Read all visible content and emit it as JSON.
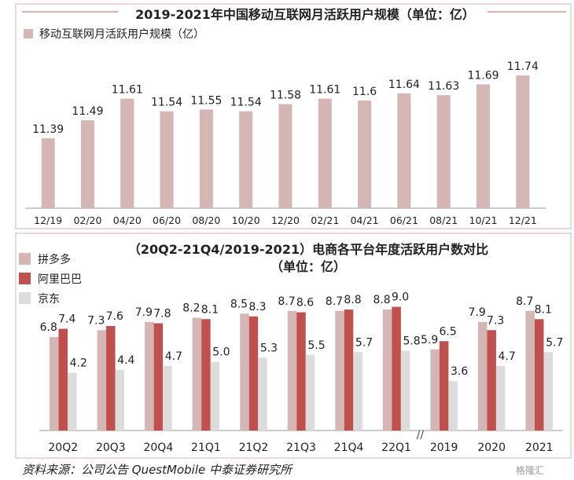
{
  "colors": {
    "panel_border": "#d7b4b4",
    "top_bar": "#d7b4b4",
    "pdd": "#d4b7b5",
    "ali": "#c0504d",
    "jd": "#dcdcdc",
    "axis": "#999999",
    "text": "#222222"
  },
  "chart_data": [
    {
      "type": "bar",
      "title": "2019-2021年中国移动互联网月活跃用户规模（单位：亿）",
      "categories": [
        "12/19",
        "02/20",
        "04/20",
        "06/20",
        "08/20",
        "10/20",
        "12/20",
        "02/21",
        "04/21",
        "06/21",
        "08/21",
        "10/21",
        "12/21"
      ],
      "series": [
        {
          "name": "移动互联网月活跃用户规模（亿）",
          "values": [
            11.39,
            11.49,
            11.61,
            11.54,
            11.55,
            11.54,
            11.58,
            11.61,
            11.6,
            11.64,
            11.63,
            11.69,
            11.74
          ]
        }
      ],
      "value_labels": [
        "11.39",
        "11.49",
        "11.61",
        "11.54",
        "11.55",
        "11.54",
        "11.58",
        "11.61",
        "11.6",
        "11.64",
        "11.63",
        "11.69",
        "11.74"
      ],
      "legend_position": "top-left",
      "grid": false
    },
    {
      "type": "bar",
      "title": "（20Q2-21Q4/2019-2021）电商各平台年度活跃用户数对比",
      "subtitle": "（单位：亿）",
      "categories": [
        "20Q2",
        "20Q3",
        "20Q4",
        "21Q1",
        "21Q2",
        "21Q3",
        "21Q4",
        "22Q1",
        "2019",
        "2020",
        "2021"
      ],
      "axis_break_after": "22Q1",
      "axis_break_label": "//",
      "series": [
        {
          "name": "拼多多",
          "values": [
            6.8,
            7.3,
            7.9,
            8.2,
            8.5,
            8.7,
            8.7,
            8.8,
            5.9,
            7.9,
            8.7
          ]
        },
        {
          "name": "阿里巴巴",
          "values": [
            7.4,
            7.6,
            7.8,
            8.1,
            8.3,
            8.6,
            8.8,
            9.0,
            6.5,
            7.3,
            8.1
          ]
        },
        {
          "name": "京东",
          "values": [
            4.2,
            4.4,
            4.7,
            5.0,
            5.3,
            5.5,
            5.7,
            5.8,
            3.6,
            4.7,
            5.7
          ]
        }
      ],
      "value_labels": [
        [
          "6.8",
          "7.3",
          "7.9",
          "8.2",
          "8.5",
          "8.7",
          "8.7",
          "8.8",
          "5.9",
          "7.9",
          "8.7"
        ],
        [
          "7.4",
          "7.6",
          "7.8",
          "8.1",
          "8.3",
          "8.6",
          "8.8",
          "9.0",
          "6.5",
          "7.3",
          "8.1"
        ],
        [
          "4.2",
          "4.4",
          "4.7",
          "5.0",
          "5.3",
          "5.5",
          "5.7",
          "5.8",
          "3.6",
          "4.7",
          "5.7"
        ]
      ],
      "legend_position": "top-left",
      "grid": false
    }
  ],
  "source": "资料来源：公司公告 QuestMobile 中泰证券研究所",
  "watermark": "格隆汇"
}
